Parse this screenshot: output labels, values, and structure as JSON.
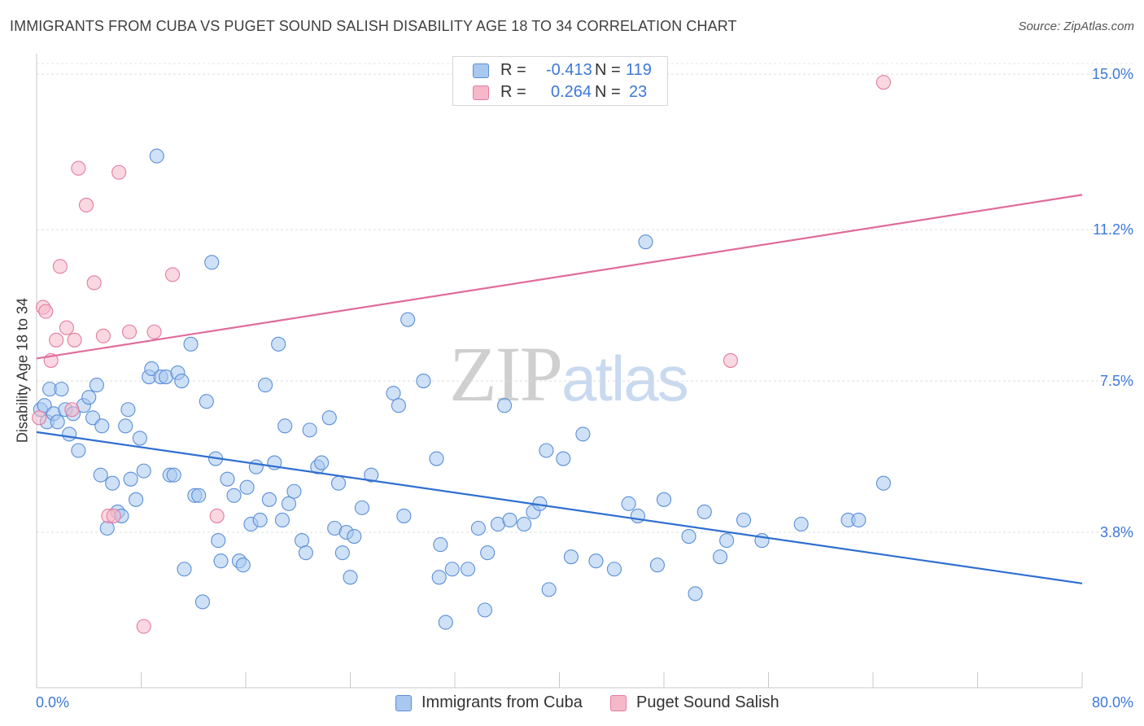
{
  "header": {
    "title": "IMMIGRANTS FROM CUBA VS PUGET SOUND SALISH DISABILITY AGE 18 TO 34 CORRELATION CHART",
    "source": "Source: ZipAtlas.com"
  },
  "watermark": {
    "part1": "ZIP",
    "part2": "atlas"
  },
  "legend": {
    "rows": [
      {
        "r_label": "R =",
        "r_value": "-0.413",
        "n_label": "N =",
        "n_value": "119",
        "color": "#a8c8f0"
      },
      {
        "r_label": "R =",
        "r_value": "0.264",
        "n_label": "N =",
        "n_value": "23",
        "color": "#f5b8c8"
      }
    ]
  },
  "bottom_legend": {
    "items": [
      {
        "label": "Immigrants from Cuba",
        "color": "#a8c8f0"
      },
      {
        "label": "Puget Sound Salish",
        "color": "#f5b8c8"
      }
    ]
  },
  "chart_data": {
    "type": "scatter",
    "title": "IMMIGRANTS FROM CUBA VS PUGET SOUND SALISH DISABILITY AGE 18 TO 34 CORRELATION CHART",
    "xlabel": "",
    "ylabel": "Disability Age 18 to 34",
    "xlim": [
      0,
      80
    ],
    "ylim": [
      0,
      15.5
    ],
    "x_tick_labels": [
      "0.0%",
      "80.0%"
    ],
    "y_ticks": [
      3.8,
      7.5,
      11.2,
      15.0
    ],
    "y_tick_labels": [
      "3.8%",
      "7.5%",
      "11.2%",
      "15.0%"
    ],
    "grid": true,
    "legend_position": "top-center",
    "series": [
      {
        "name": "Immigrants from Cuba",
        "color": "#a8c8f0",
        "stroke": "#5b8fd6",
        "trend": {
          "x": [
            0,
            80
          ],
          "y": [
            6.25,
            2.55
          ],
          "color": "#2f6fd0"
        },
        "points": [
          [
            0.3,
            6.8
          ],
          [
            0.6,
            6.9
          ],
          [
            0.8,
            6.5
          ],
          [
            1.0,
            7.3
          ],
          [
            1.3,
            6.7
          ],
          [
            1.6,
            6.5
          ],
          [
            1.9,
            7.3
          ],
          [
            2.2,
            6.8
          ],
          [
            2.5,
            6.2
          ],
          [
            2.8,
            6.7
          ],
          [
            3.2,
            5.8
          ],
          [
            3.6,
            6.9
          ],
          [
            4.0,
            7.1
          ],
          [
            4.3,
            6.6
          ],
          [
            4.6,
            7.4
          ],
          [
            5.0,
            6.4
          ],
          [
            4.9,
            5.2
          ],
          [
            5.4,
            3.9
          ],
          [
            5.8,
            5.0
          ],
          [
            6.2,
            4.3
          ],
          [
            6.5,
            4.2
          ],
          [
            6.8,
            6.4
          ],
          [
            7.0,
            6.8
          ],
          [
            7.2,
            5.1
          ],
          [
            7.6,
            4.6
          ],
          [
            7.9,
            6.1
          ],
          [
            8.2,
            5.3
          ],
          [
            8.6,
            7.6
          ],
          [
            8.8,
            7.8
          ],
          [
            9.2,
            13.0
          ],
          [
            9.5,
            7.6
          ],
          [
            9.9,
            7.6
          ],
          [
            10.2,
            5.2
          ],
          [
            10.5,
            5.2
          ],
          [
            10.8,
            7.7
          ],
          [
            11.1,
            7.5
          ],
          [
            11.3,
            2.9
          ],
          [
            11.8,
            8.4
          ],
          [
            12.1,
            4.7
          ],
          [
            12.4,
            4.7
          ],
          [
            12.7,
            2.1
          ],
          [
            13.0,
            7.0
          ],
          [
            13.4,
            10.4
          ],
          [
            13.7,
            5.6
          ],
          [
            13.9,
            3.6
          ],
          [
            14.1,
            3.1
          ],
          [
            14.6,
            5.1
          ],
          [
            15.1,
            4.7
          ],
          [
            15.5,
            3.1
          ],
          [
            15.8,
            3.0
          ],
          [
            16.1,
            4.9
          ],
          [
            16.4,
            4.0
          ],
          [
            16.8,
            5.4
          ],
          [
            17.1,
            4.1
          ],
          [
            17.5,
            7.4
          ],
          [
            17.8,
            4.6
          ],
          [
            18.2,
            5.5
          ],
          [
            18.5,
            8.4
          ],
          [
            18.8,
            4.1
          ],
          [
            19.0,
            6.4
          ],
          [
            19.3,
            4.5
          ],
          [
            19.7,
            4.8
          ],
          [
            20.3,
            3.6
          ],
          [
            20.6,
            3.3
          ],
          [
            20.9,
            6.3
          ],
          [
            21.5,
            5.4
          ],
          [
            21.8,
            5.5
          ],
          [
            22.4,
            6.6
          ],
          [
            22.8,
            3.9
          ],
          [
            23.1,
            5.0
          ],
          [
            23.4,
            3.3
          ],
          [
            23.7,
            3.8
          ],
          [
            24.0,
            2.7
          ],
          [
            24.3,
            3.7
          ],
          [
            24.9,
            4.4
          ],
          [
            25.6,
            5.2
          ],
          [
            27.3,
            7.2
          ],
          [
            27.7,
            6.9
          ],
          [
            28.1,
            4.2
          ],
          [
            28.4,
            9.0
          ],
          [
            29.6,
            7.5
          ],
          [
            30.6,
            5.6
          ],
          [
            30.8,
            2.7
          ],
          [
            30.9,
            3.5
          ],
          [
            31.3,
            1.6
          ],
          [
            31.8,
            2.9
          ],
          [
            33.0,
            2.9
          ],
          [
            33.8,
            3.9
          ],
          [
            34.3,
            1.9
          ],
          [
            34.5,
            3.3
          ],
          [
            35.3,
            4.0
          ],
          [
            35.8,
            6.9
          ],
          [
            36.2,
            4.1
          ],
          [
            37.3,
            4.0
          ],
          [
            38.0,
            4.3
          ],
          [
            38.5,
            4.5
          ],
          [
            39.0,
            5.8
          ],
          [
            39.2,
            2.4
          ],
          [
            40.3,
            5.6
          ],
          [
            40.9,
            3.2
          ],
          [
            41.8,
            6.2
          ],
          [
            42.8,
            3.1
          ],
          [
            44.2,
            2.9
          ],
          [
            45.3,
            4.5
          ],
          [
            46.0,
            4.2
          ],
          [
            46.6,
            10.9
          ],
          [
            47.5,
            3.0
          ],
          [
            48.0,
            4.6
          ],
          [
            49.9,
            3.7
          ],
          [
            50.4,
            2.3
          ],
          [
            51.1,
            4.3
          ],
          [
            52.3,
            3.2
          ],
          [
            52.8,
            3.6
          ],
          [
            54.1,
            4.1
          ],
          [
            55.5,
            3.6
          ],
          [
            58.5,
            4.0
          ],
          [
            62.1,
            4.1
          ],
          [
            62.9,
            4.1
          ],
          [
            64.8,
            5.0
          ]
        ]
      },
      {
        "name": "Puget Sound Salish",
        "color": "#f5b8c8",
        "stroke": "#e37ca0",
        "trend": {
          "x": [
            0,
            80
          ],
          "y": [
            8.05,
            12.05
          ],
          "color": "#e06c9a"
        },
        "points": [
          [
            0.2,
            6.6
          ],
          [
            0.5,
            9.3
          ],
          [
            0.7,
            9.2
          ],
          [
            1.1,
            8.0
          ],
          [
            1.5,
            8.5
          ],
          [
            1.8,
            10.3
          ],
          [
            2.3,
            8.8
          ],
          [
            2.7,
            6.8
          ],
          [
            2.9,
            8.5
          ],
          [
            3.2,
            12.7
          ],
          [
            3.8,
            11.8
          ],
          [
            4.4,
            9.9
          ],
          [
            5.1,
            8.6
          ],
          [
            5.5,
            4.2
          ],
          [
            5.9,
            4.2
          ],
          [
            6.3,
            12.6
          ],
          [
            7.1,
            8.7
          ],
          [
            8.2,
            1.5
          ],
          [
            9.0,
            8.7
          ],
          [
            10.4,
            10.1
          ],
          [
            13.8,
            4.2
          ],
          [
            53.1,
            8.0
          ],
          [
            64.8,
            14.8
          ]
        ]
      }
    ]
  }
}
